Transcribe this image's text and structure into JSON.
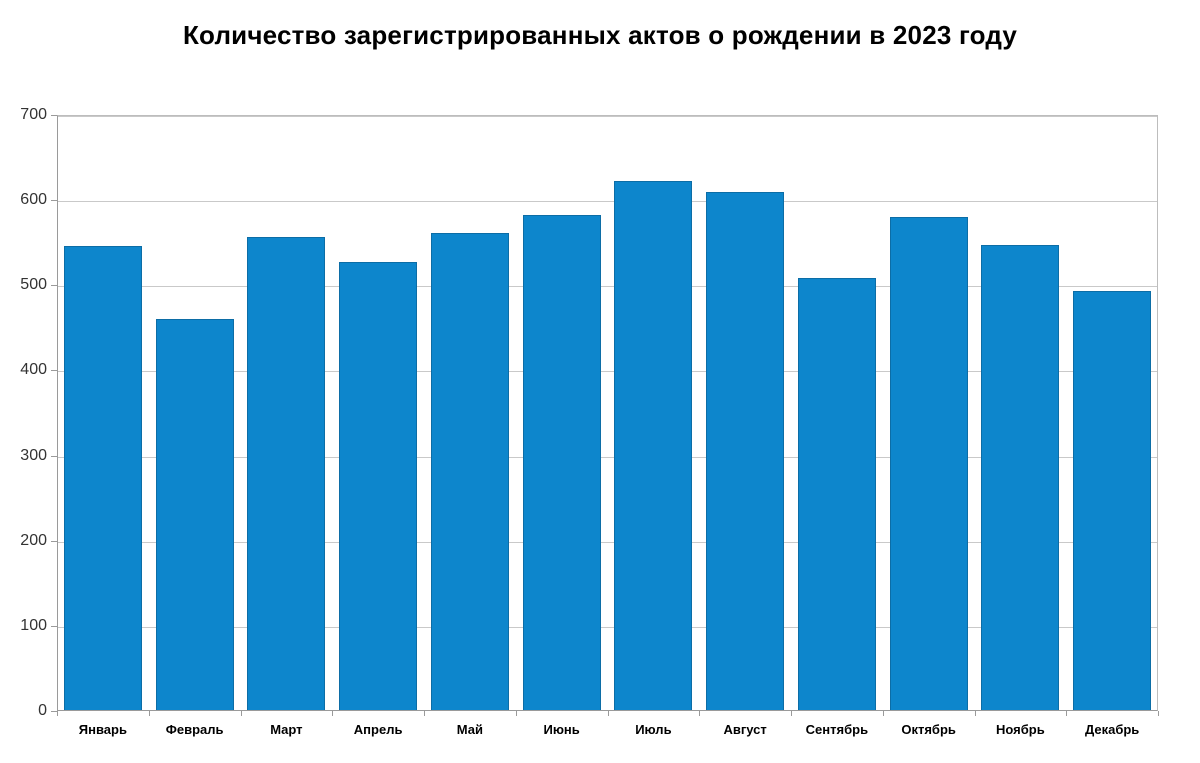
{
  "chart_data": {
    "type": "bar",
    "title": "Количество зарегистрированных актов о рождении в 2023 году",
    "categories": [
      "Январь",
      "Февраль",
      "Март",
      "Апрель",
      "Май",
      "Июнь",
      "Июль",
      "Август",
      "Сентябрь",
      "Октябрь",
      "Ноябрь",
      "Декабрь"
    ],
    "values": [
      547,
      461,
      557,
      528,
      562,
      583,
      623,
      611,
      509,
      581,
      548,
      494
    ],
    "xlabel": "",
    "ylabel": "",
    "ylim": [
      0,
      700
    ],
    "yticks": [
      0,
      100,
      200,
      300,
      400,
      500,
      600,
      700
    ],
    "grid": "horizontal",
    "legend": "none",
    "colors": {
      "bar_fill": "#0d86cc",
      "bar_border": "#0c6da6",
      "gridline": "#c9c9c9",
      "axis_line": "#9a9a9a",
      "tick_mark": "#9a9a9a",
      "y_label_text": "#333333",
      "x_label_text": "#000000",
      "title_text": "#000000",
      "background": "#ffffff"
    }
  }
}
